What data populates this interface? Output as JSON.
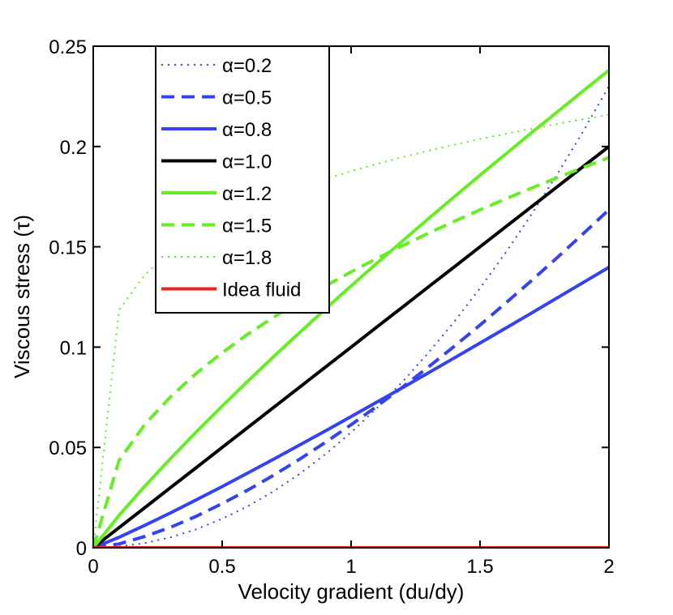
{
  "chart_data": {
    "type": "line",
    "xlabel": "Velocity gradient (du/dy)",
    "ylabel": "Viscous stress (τ)",
    "xlim": [
      0,
      2
    ],
    "ylim": [
      0,
      0.25
    ],
    "xticks": [
      0,
      0.5,
      1,
      1.5,
      2
    ],
    "xtick_labels": [
      "0",
      "0.5",
      "1",
      "1.5",
      "2"
    ],
    "yticks": [
      0,
      0.05,
      0.1,
      0.15,
      0.2,
      0.25
    ],
    "ytick_labels": [
      "0",
      "0.05",
      "0.1",
      "0.15",
      "0.2",
      "0.25"
    ],
    "grid": false,
    "legend_position": "top-left",
    "x": [
      0,
      0.1,
      0.2,
      0.3,
      0.4,
      0.5,
      0.6,
      0.7,
      0.8,
      0.9,
      1.0,
      1.1,
      1.2,
      1.3,
      1.4,
      1.5,
      1.6,
      1.7,
      1.8,
      1.9,
      2.0
    ],
    "series": [
      {
        "name": "α=0.2",
        "color": "#3344ee",
        "dash": "dotted",
        "values": [
          0,
          0.0006,
          0.0023,
          0.0052,
          0.0092,
          0.0144,
          0.0207,
          0.0282,
          0.0368,
          0.0466,
          0.0575,
          0.0696,
          0.0828,
          0.0972,
          0.1127,
          0.1294,
          0.1472,
          0.1662,
          0.1863,
          0.2076,
          0.23
        ]
      },
      {
        "name": "α=0.5",
        "color": "#3344ee",
        "dash": "dashed",
        "values": [
          0,
          0.0019,
          0.0056,
          0.0102,
          0.0157,
          0.022,
          0.0288,
          0.0362,
          0.0441,
          0.0525,
          0.0613,
          0.0705,
          0.0801,
          0.0901,
          0.1004,
          0.111,
          0.122,
          0.1332,
          0.1447,
          0.1565,
          0.1685
        ]
      },
      {
        "name": "α=0.8",
        "color": "#3344ee",
        "dash": "solid",
        "values": [
          0,
          0.0052,
          0.0112,
          0.0174,
          0.0239,
          0.0305,
          0.0373,
          0.0442,
          0.0512,
          0.0582,
          0.0654,
          0.0726,
          0.0798,
          0.0872,
          0.0946,
          0.102,
          0.1095,
          0.117,
          0.1246,
          0.1322,
          0.1398
        ]
      },
      {
        "name": "α=1.0",
        "color": "#000000",
        "dash": "solid",
        "values": [
          0,
          0.01,
          0.02,
          0.03,
          0.04,
          0.05,
          0.06,
          0.07,
          0.08,
          0.09,
          0.1,
          0.11,
          0.12,
          0.13,
          0.14,
          0.15,
          0.16,
          0.17,
          0.18,
          0.19,
          0.2
        ]
      },
      {
        "name": "α=1.2",
        "color": "#66ee22",
        "dash": "solid",
        "values": [
          0,
          0.0161,
          0.0307,
          0.0445,
          0.0578,
          0.0706,
          0.0831,
          0.0953,
          0.1072,
          0.119,
          0.1305,
          0.1418,
          0.153,
          0.164,
          0.1749,
          0.1857,
          0.1963,
          0.2069,
          0.2173,
          0.2277,
          0.238
        ]
      },
      {
        "name": "α=1.5",
        "color": "#66ee22",
        "dash": "dashed",
        "values": [
          0,
          0.0435,
          0.0615,
          0.0753,
          0.087,
          0.0972,
          0.1065,
          0.115,
          0.123,
          0.1304,
          0.1375,
          0.1442,
          0.1506,
          0.1568,
          0.1627,
          0.1684,
          0.1739,
          0.1793,
          0.1845,
          0.1895,
          0.1945
        ]
      },
      {
        "name": "α=1.8",
        "color": "#66ee22",
        "dash": "dotted",
        "values": [
          0,
          0.1185,
          0.1361,
          0.1475,
          0.1563,
          0.1634,
          0.1694,
          0.1747,
          0.1795,
          0.1838,
          0.1877,
          0.1913,
          0.1947,
          0.1979,
          0.2009,
          0.2037,
          0.2063,
          0.2089,
          0.2113,
          0.2136,
          0.2158
        ]
      },
      {
        "name": "Idea fluid",
        "color": "#ee2222",
        "dash": "solid",
        "values": [
          0,
          0,
          0,
          0,
          0,
          0,
          0,
          0,
          0,
          0,
          0,
          0,
          0,
          0,
          0,
          0,
          0,
          0,
          0,
          0,
          0
        ]
      }
    ]
  }
}
